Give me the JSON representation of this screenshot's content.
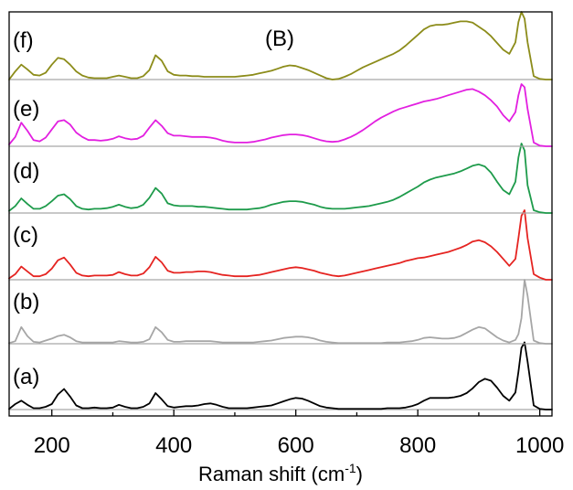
{
  "chart_data": {
    "type": "line",
    "title": "(B)",
    "xlabel": "Raman shift (cm",
    "xlabel_sup": "-1",
    "xlabel_close": ")",
    "ylabel": "",
    "xlim": [
      130,
      1020
    ],
    "xticks": [
      200,
      400,
      600,
      800,
      1000
    ],
    "xtick_labels": [
      "200",
      "400",
      "600",
      "800",
      "1000"
    ],
    "minor_xticks": [
      300,
      500,
      700,
      900
    ],
    "y_ticks_visible": false,
    "grid": false,
    "x": [
      130,
      140,
      150,
      160,
      170,
      180,
      190,
      200,
      210,
      220,
      230,
      240,
      250,
      260,
      270,
      280,
      290,
      300,
      310,
      320,
      330,
      340,
      350,
      360,
      370,
      380,
      390,
      400,
      410,
      420,
      430,
      440,
      450,
      460,
      470,
      480,
      490,
      500,
      510,
      520,
      530,
      540,
      550,
      560,
      570,
      580,
      590,
      600,
      610,
      620,
      630,
      640,
      650,
      660,
      670,
      680,
      690,
      700,
      710,
      720,
      730,
      740,
      750,
      760,
      770,
      780,
      790,
      800,
      810,
      820,
      830,
      840,
      850,
      860,
      870,
      880,
      890,
      900,
      910,
      920,
      930,
      940,
      950,
      960,
      965,
      970,
      975,
      980,
      990,
      1000,
      1010,
      1020
    ],
    "series": [
      {
        "name": "(a)",
        "color": "#000000",
        "values": [
          0.01,
          0.08,
          0.13,
          0.07,
          0.02,
          0.02,
          0.04,
          0.08,
          0.22,
          0.3,
          0.19,
          0.06,
          0.02,
          0.02,
          0.03,
          0.02,
          0.02,
          0.03,
          0.07,
          0.04,
          0.02,
          0.02,
          0.04,
          0.09,
          0.24,
          0.15,
          0.05,
          0.03,
          0.04,
          0.05,
          0.05,
          0.06,
          0.08,
          0.09,
          0.07,
          0.04,
          0.02,
          0.02,
          0.02,
          0.02,
          0.03,
          0.04,
          0.05,
          0.06,
          0.09,
          0.12,
          0.15,
          0.17,
          0.16,
          0.13,
          0.09,
          0.05,
          0.03,
          0.02,
          0.01,
          0.01,
          0.01,
          0.01,
          0.01,
          0.01,
          0.01,
          0.01,
          0.02,
          0.02,
          0.02,
          0.03,
          0.05,
          0.08,
          0.13,
          0.17,
          0.17,
          0.17,
          0.17,
          0.18,
          0.2,
          0.24,
          0.31,
          0.4,
          0.45,
          0.42,
          0.32,
          0.2,
          0.13,
          0.25,
          0.55,
          0.9,
          0.98,
          0.7,
          0.06,
          0.01,
          0.0,
          0.0
        ]
      },
      {
        "name": "(b)",
        "color": "#a6a6a6",
        "values": [
          0.01,
          0.04,
          0.26,
          0.12,
          0.03,
          0.02,
          0.05,
          0.08,
          0.12,
          0.14,
          0.1,
          0.04,
          0.02,
          0.02,
          0.02,
          0.02,
          0.02,
          0.02,
          0.04,
          0.03,
          0.02,
          0.02,
          0.03,
          0.07,
          0.26,
          0.18,
          0.06,
          0.03,
          0.03,
          0.04,
          0.04,
          0.04,
          0.04,
          0.04,
          0.03,
          0.02,
          0.02,
          0.02,
          0.02,
          0.02,
          0.02,
          0.03,
          0.04,
          0.05,
          0.07,
          0.09,
          0.1,
          0.11,
          0.11,
          0.1,
          0.08,
          0.05,
          0.03,
          0.02,
          0.01,
          0.01,
          0.01,
          0.01,
          0.01,
          0.01,
          0.01,
          0.01,
          0.02,
          0.02,
          0.02,
          0.03,
          0.04,
          0.06,
          0.09,
          0.1,
          0.09,
          0.08,
          0.08,
          0.09,
          0.12,
          0.17,
          0.22,
          0.26,
          0.24,
          0.17,
          0.1,
          0.05,
          0.02,
          0.06,
          0.15,
          0.4,
          1.0,
          0.75,
          0.05,
          0.01,
          0.0,
          0.0
        ]
      },
      {
        "name": "(c)",
        "color": "#e52421",
        "values": [
          0.02,
          0.08,
          0.19,
          0.12,
          0.05,
          0.05,
          0.08,
          0.16,
          0.28,
          0.32,
          0.22,
          0.1,
          0.06,
          0.05,
          0.06,
          0.06,
          0.06,
          0.07,
          0.11,
          0.08,
          0.06,
          0.06,
          0.09,
          0.18,
          0.33,
          0.25,
          0.13,
          0.1,
          0.1,
          0.11,
          0.11,
          0.12,
          0.12,
          0.11,
          0.09,
          0.07,
          0.06,
          0.05,
          0.05,
          0.05,
          0.06,
          0.07,
          0.09,
          0.11,
          0.13,
          0.15,
          0.17,
          0.18,
          0.17,
          0.15,
          0.13,
          0.1,
          0.08,
          0.06,
          0.05,
          0.06,
          0.08,
          0.1,
          0.12,
          0.14,
          0.16,
          0.18,
          0.2,
          0.22,
          0.24,
          0.27,
          0.29,
          0.31,
          0.32,
          0.34,
          0.36,
          0.38,
          0.4,
          0.43,
          0.46,
          0.5,
          0.55,
          0.57,
          0.54,
          0.48,
          0.4,
          0.3,
          0.2,
          0.3,
          0.6,
          0.92,
          1.0,
          0.6,
          0.08,
          0.03,
          0.0,
          0.0
        ]
      },
      {
        "name": "(d)",
        "color": "#1e9b4b",
        "values": [
          0.03,
          0.1,
          0.21,
          0.13,
          0.06,
          0.06,
          0.1,
          0.17,
          0.25,
          0.27,
          0.2,
          0.1,
          0.06,
          0.05,
          0.06,
          0.06,
          0.07,
          0.09,
          0.12,
          0.09,
          0.07,
          0.08,
          0.12,
          0.22,
          0.36,
          0.28,
          0.14,
          0.11,
          0.1,
          0.1,
          0.1,
          0.09,
          0.09,
          0.08,
          0.07,
          0.06,
          0.05,
          0.05,
          0.05,
          0.05,
          0.06,
          0.07,
          0.09,
          0.12,
          0.14,
          0.16,
          0.17,
          0.17,
          0.16,
          0.14,
          0.12,
          0.09,
          0.07,
          0.06,
          0.06,
          0.06,
          0.07,
          0.08,
          0.09,
          0.1,
          0.12,
          0.14,
          0.16,
          0.19,
          0.23,
          0.28,
          0.33,
          0.38,
          0.44,
          0.48,
          0.51,
          0.53,
          0.55,
          0.57,
          0.6,
          0.64,
          0.68,
          0.7,
          0.67,
          0.58,
          0.45,
          0.33,
          0.27,
          0.45,
          0.8,
          1.0,
          0.9,
          0.4,
          0.04,
          0.01,
          0.0,
          0.0
        ]
      },
      {
        "name": "(e)",
        "color": "#e21fe0",
        "values": [
          0.03,
          0.15,
          0.38,
          0.25,
          0.1,
          0.08,
          0.14,
          0.27,
          0.4,
          0.42,
          0.35,
          0.22,
          0.15,
          0.1,
          0.1,
          0.09,
          0.1,
          0.12,
          0.16,
          0.13,
          0.11,
          0.12,
          0.17,
          0.3,
          0.42,
          0.33,
          0.21,
          0.17,
          0.17,
          0.16,
          0.15,
          0.15,
          0.15,
          0.14,
          0.12,
          0.09,
          0.07,
          0.06,
          0.06,
          0.06,
          0.07,
          0.09,
          0.11,
          0.14,
          0.16,
          0.18,
          0.19,
          0.19,
          0.18,
          0.16,
          0.13,
          0.1,
          0.08,
          0.07,
          0.08,
          0.11,
          0.15,
          0.2,
          0.26,
          0.33,
          0.4,
          0.46,
          0.51,
          0.56,
          0.6,
          0.63,
          0.66,
          0.69,
          0.72,
          0.74,
          0.76,
          0.79,
          0.82,
          0.85,
          0.88,
          0.91,
          0.92,
          0.88,
          0.82,
          0.74,
          0.64,
          0.5,
          0.4,
          0.55,
          0.82,
          1.0,
          0.95,
          0.6,
          0.06,
          0.01,
          0.0,
          0.0
        ]
      },
      {
        "name": "(f)",
        "color": "#8c8c1a",
        "values": [
          0.0,
          0.12,
          0.22,
          0.15,
          0.07,
          0.06,
          0.1,
          0.22,
          0.32,
          0.3,
          0.22,
          0.12,
          0.06,
          0.03,
          0.02,
          0.02,
          0.02,
          0.04,
          0.06,
          0.04,
          0.02,
          0.02,
          0.05,
          0.14,
          0.36,
          0.28,
          0.12,
          0.07,
          0.06,
          0.06,
          0.05,
          0.05,
          0.04,
          0.04,
          0.04,
          0.04,
          0.04,
          0.04,
          0.05,
          0.06,
          0.07,
          0.09,
          0.11,
          0.13,
          0.16,
          0.19,
          0.21,
          0.2,
          0.17,
          0.14,
          0.1,
          0.06,
          0.02,
          0.0,
          0.01,
          0.04,
          0.08,
          0.13,
          0.18,
          0.22,
          0.26,
          0.3,
          0.34,
          0.38,
          0.43,
          0.5,
          0.58,
          0.66,
          0.74,
          0.79,
          0.81,
          0.81,
          0.82,
          0.84,
          0.86,
          0.86,
          0.84,
          0.78,
          0.72,
          0.64,
          0.54,
          0.44,
          0.38,
          0.55,
          0.85,
          1.0,
          0.9,
          0.55,
          0.05,
          0.01,
          0.0,
          0.0
        ]
      }
    ]
  }
}
